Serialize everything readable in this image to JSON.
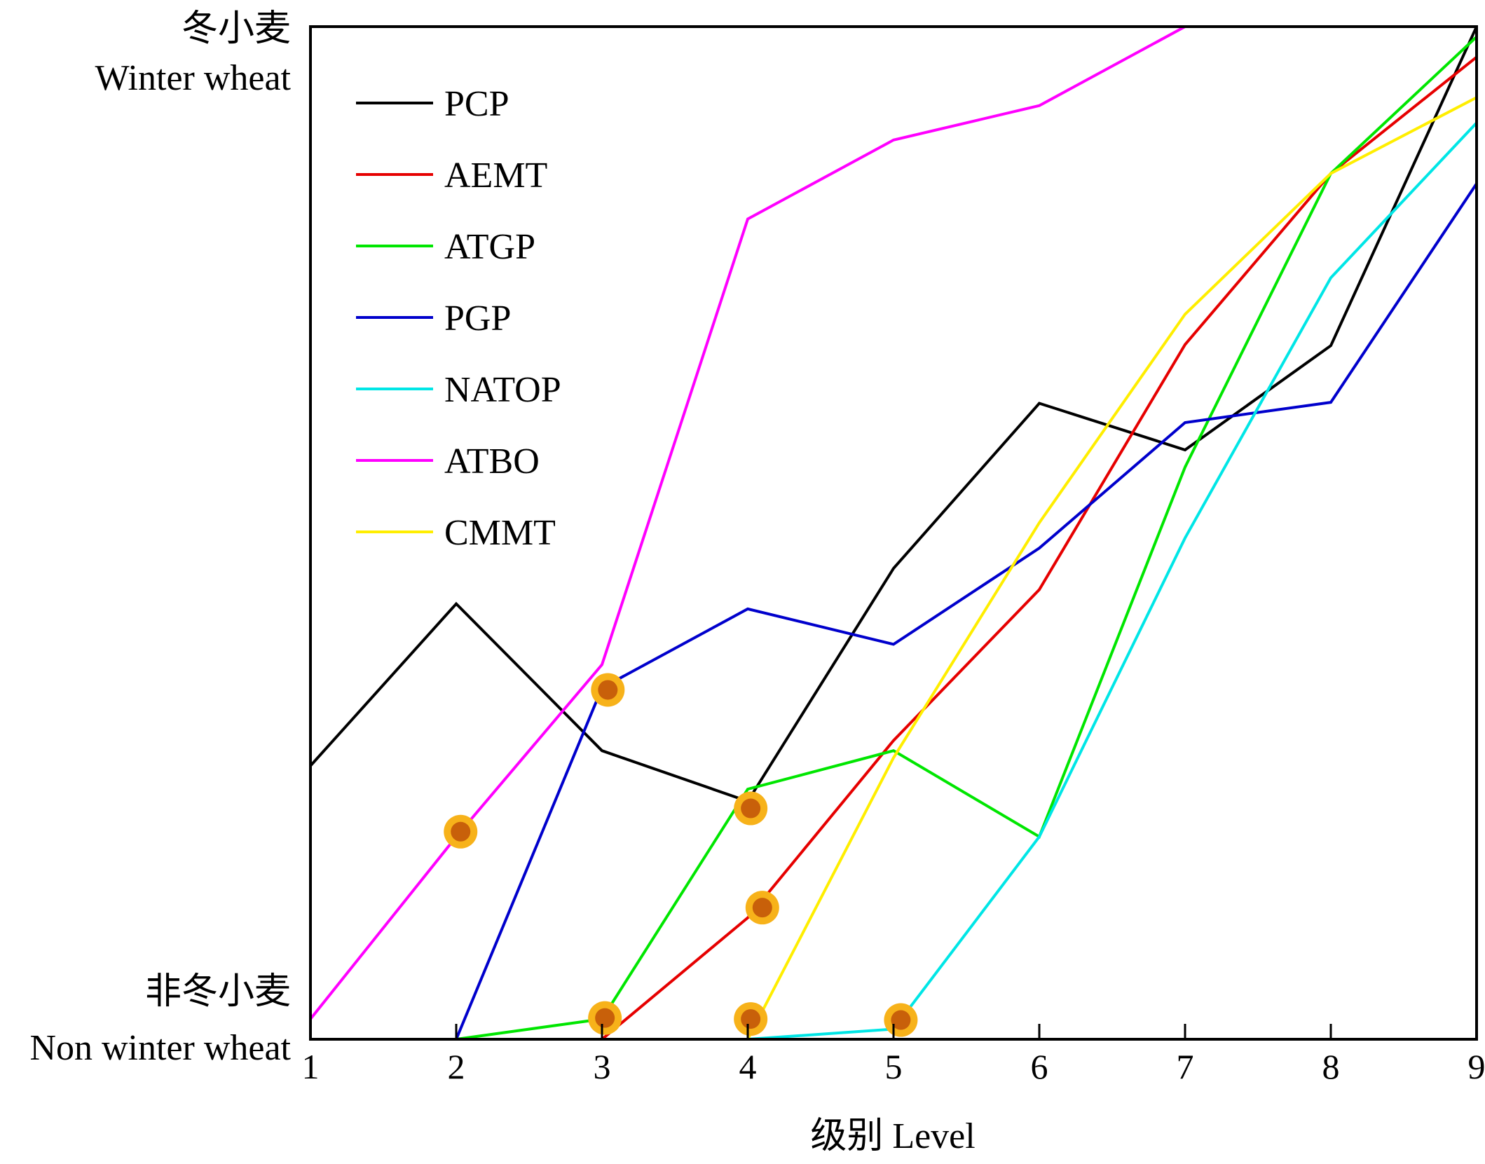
{
  "chart_data": {
    "type": "line",
    "x": [
      1,
      2,
      3,
      4,
      5,
      6,
      7,
      8,
      9
    ],
    "xlim": [
      1,
      9
    ],
    "ylim": [
      0,
      1
    ],
    "xlabel": "级别 Level",
    "ylabel": "",
    "y_top_label_cn": "冬小麦",
    "y_top_label_en": "Winter wheat",
    "y_bottom_label_cn": "非冬小麦",
    "y_bottom_label_en": "Non winter wheat",
    "x_tick_labels": [
      "1",
      "2",
      "3",
      "4",
      "5",
      "6",
      "7",
      "8",
      "9"
    ],
    "grid": false,
    "legend_position": "top-left",
    "series": [
      {
        "name": "PCP",
        "color": "#000000",
        "values": [
          0.27,
          0.43,
          0.285,
          0.235,
          0.465,
          0.628,
          0.582,
          0.685,
          1.0
        ]
      },
      {
        "name": "AEMT",
        "color": "#e60000",
        "values": [
          null,
          null,
          0.0,
          0.12,
          0.295,
          0.444,
          0.686,
          0.855,
          0.97
        ]
      },
      {
        "name": "ATGP",
        "color": "#00e600",
        "values": [
          null,
          0.0,
          0.02,
          0.247,
          0.285,
          0.2,
          0.565,
          0.855,
          0.99
        ]
      },
      {
        "name": "PGP",
        "color": "#0000cc",
        "values": [
          null,
          0.0,
          0.347,
          0.425,
          0.39,
          0.485,
          0.609,
          0.629,
          0.845
        ]
      },
      {
        "name": "NATOP",
        "color": "#00e6e6",
        "values": [
          null,
          null,
          null,
          0.0,
          0.01,
          0.2,
          0.495,
          0.752,
          0.905
        ]
      },
      {
        "name": "ATBO",
        "color": "#ff00ff",
        "values": [
          0.02,
          0.2,
          0.37,
          0.81,
          0.888,
          0.922,
          1.0,
          null,
          null
        ]
      },
      {
        "name": "CMMT",
        "color": "#ffee00",
        "values": [
          null,
          null,
          0.0,
          0.0,
          0.278,
          0.51,
          0.716,
          0.855,
          0.93
        ]
      }
    ],
    "markers": {
      "fill": "#c8600a",
      "ring": "#f7b21a",
      "points": [
        {
          "x": 3.04,
          "y": 0.345
        },
        {
          "x": 2.03,
          "y": 0.205
        },
        {
          "x": 4.02,
          "y": 0.228
        },
        {
          "x": 4.1,
          "y": 0.13
        },
        {
          "x": 3.02,
          "y": 0.021
        },
        {
          "x": 4.02,
          "y": 0.02
        },
        {
          "x": 5.05,
          "y": 0.019
        }
      ]
    }
  }
}
